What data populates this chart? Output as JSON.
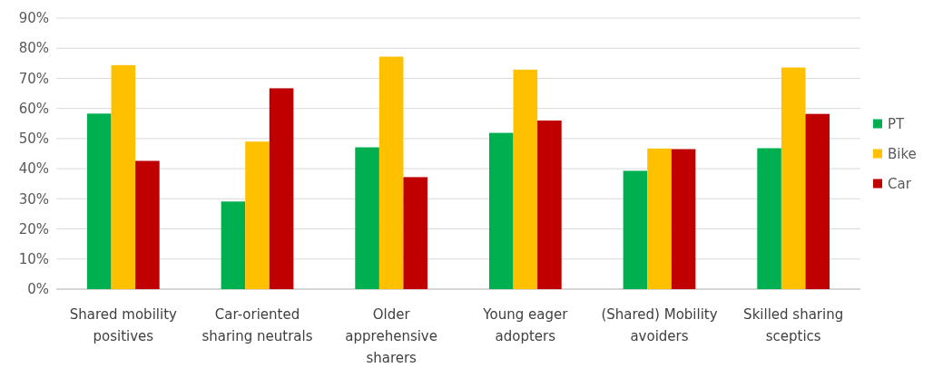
{
  "chart_data": {
    "type": "bar",
    "categories": [
      "Shared mobility positives",
      "Car-oriented sharing neutrals",
      "Older apprehensive sharers",
      "Young eager adopters",
      "(Shared) Mobility avoiders",
      "Skilled sharing sceptics"
    ],
    "series": [
      {
        "name": "PT",
        "color": "#00b050",
        "values": [
          58.3,
          29.1,
          47.1,
          51.9,
          39.3,
          46.8
        ]
      },
      {
        "name": "Bike",
        "color": "#ffc000",
        "values": [
          74.4,
          49,
          77.2,
          72.9,
          46.7,
          73.6
        ]
      },
      {
        "name": "Car",
        "color": "#c00000",
        "values": [
          42.6,
          66.7,
          37.2,
          56,
          46.5,
          58.2
        ]
      }
    ],
    "ylim": [
      0,
      90
    ],
    "yticks": [
      {
        "value": 0,
        "label": "0%"
      },
      {
        "value": 10,
        "label": "10%"
      },
      {
        "value": 20,
        "label": "20%"
      },
      {
        "value": 30,
        "label": "30%"
      },
      {
        "value": 40,
        "label": "40%"
      },
      {
        "value": 50,
        "label": "50%"
      },
      {
        "value": 60,
        "label": "60%"
      },
      {
        "value": 70,
        "label": "70%"
      },
      {
        "value": 80,
        "label": "80%"
      },
      {
        "value": 90,
        "label": "90%"
      }
    ],
    "grid": true,
    "legend": "right"
  }
}
